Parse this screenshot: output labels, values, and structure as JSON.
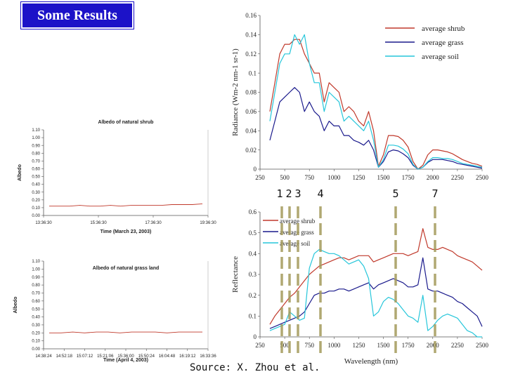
{
  "slide": {
    "title": "Some Results",
    "source": "Source: X. Zhou et al.",
    "colors": {
      "title_bg": "#1c12c8",
      "band_marker": "#a39a5a"
    }
  },
  "band_labels": [
    "1",
    "2",
    "3",
    "4",
    "5",
    "7"
  ],
  "chart_data": [
    {
      "type": "line",
      "title": "Albedo of natural shrub",
      "xlabel": "Time (March 23, 2003)",
      "ylabel": "Albedo",
      "x_ticks": [
        "13:36:30",
        "15:36:30",
        "17:36:30",
        "19:36:30"
      ],
      "y_ticks": [
        "0.00",
        "0.10",
        "0.20",
        "0.30",
        "0.40",
        "0.50",
        "0.60",
        "0.70",
        "0.80",
        "0.90",
        "1.00",
        "1.10"
      ],
      "ylim": [
        0,
        1.1
      ],
      "series": [
        {
          "color": "#c0392b",
          "values": [
            0.12,
            0.12,
            0.12,
            0.13,
            0.12,
            0.12,
            0.13,
            0.12,
            0.13,
            0.13,
            0.13,
            0.13,
            0.14,
            0.14,
            0.14,
            0.15
          ]
        }
      ]
    },
    {
      "type": "line",
      "title": "Albedo of natural grass land",
      "xlabel": "Time (April 4, 2003)",
      "ylabel": "Albedo",
      "x_ticks": [
        "14:38:24",
        "14:52:18",
        "15:07:12",
        "15:21:06",
        "15:36:00",
        "15:50:24",
        "16:04:48",
        "16:19:12",
        "16:33:36"
      ],
      "y_ticks": [
        "0.00",
        "0.10",
        "0.20",
        "0.30",
        "0.40",
        "0.50",
        "0.60",
        "0.70",
        "0.80",
        "0.90",
        "1.00",
        "1.10"
      ],
      "ylim": [
        0,
        1.1
      ],
      "series": [
        {
          "color": "#c0392b",
          "values": [
            0.2,
            0.2,
            0.21,
            0.2,
            0.21,
            0.21,
            0.2,
            0.21,
            0.21,
            0.21,
            0.2,
            0.21,
            0.21,
            0.21
          ]
        }
      ]
    },
    {
      "type": "line",
      "title": "",
      "xlabel": "",
      "ylabel": "Radiance (Wm-2 nm-1 sr-1)",
      "x_ticks": [
        "250",
        "500",
        "750",
        "1000",
        "1250",
        "1500",
        "1750",
        "2000",
        "2250",
        "2500"
      ],
      "y_ticks": [
        "0",
        "0.02",
        "0.04",
        "0.06",
        "0.08",
        "0.1",
        "0.12",
        "0.14",
        "0.16"
      ],
      "xlim": [
        250,
        2500
      ],
      "ylim": [
        0,
        0.16
      ],
      "legend": "top-right",
      "x": [
        350,
        400,
        450,
        500,
        550,
        600,
        650,
        700,
        750,
        800,
        850,
        900,
        950,
        1000,
        1050,
        1100,
        1150,
        1200,
        1250,
        1300,
        1350,
        1400,
        1450,
        1500,
        1550,
        1600,
        1650,
        1700,
        1750,
        1800,
        1850,
        1900,
        1950,
        2000,
        2050,
        2100,
        2150,
        2200,
        2250,
        2300,
        2350,
        2400,
        2450,
        2500
      ],
      "series": [
        {
          "name": "average shrub",
          "color": "#c0392b",
          "values": [
            0.06,
            0.09,
            0.12,
            0.13,
            0.13,
            0.135,
            0.135,
            0.12,
            0.11,
            0.1,
            0.1,
            0.07,
            0.09,
            0.085,
            0.08,
            0.06,
            0.065,
            0.06,
            0.05,
            0.045,
            0.06,
            0.04,
            0.003,
            0.015,
            0.035,
            0.035,
            0.034,
            0.03,
            0.023,
            0.008,
            0.0,
            0.004,
            0.015,
            0.02,
            0.02,
            0.019,
            0.018,
            0.016,
            0.013,
            0.01,
            0.008,
            0.006,
            0.005,
            0.003
          ]
        },
        {
          "name": "average grass",
          "color": "#1a1a8c",
          "values": [
            0.03,
            0.05,
            0.07,
            0.075,
            0.08,
            0.085,
            0.08,
            0.06,
            0.07,
            0.06,
            0.055,
            0.04,
            0.05,
            0.045,
            0.045,
            0.035,
            0.035,
            0.03,
            0.028,
            0.025,
            0.03,
            0.02,
            0.002,
            0.008,
            0.018,
            0.02,
            0.019,
            0.016,
            0.012,
            0.004,
            0.0,
            0.002,
            0.007,
            0.01,
            0.01,
            0.01,
            0.009,
            0.008,
            0.006,
            0.005,
            0.004,
            0.003,
            0.002,
            0.001
          ]
        },
        {
          "name": "average soil",
          "color": "#26c6da",
          "values": [
            0.05,
            0.08,
            0.11,
            0.12,
            0.12,
            0.14,
            0.13,
            0.14,
            0.11,
            0.09,
            0.09,
            0.06,
            0.08,
            0.075,
            0.07,
            0.05,
            0.055,
            0.05,
            0.045,
            0.04,
            0.05,
            0.03,
            0.002,
            0.01,
            0.025,
            0.025,
            0.024,
            0.021,
            0.016,
            0.005,
            0.0,
            0.002,
            0.008,
            0.012,
            0.012,
            0.011,
            0.011,
            0.01,
            0.008,
            0.006,
            0.005,
            0.004,
            0.003,
            0.002
          ]
        }
      ]
    },
    {
      "type": "line",
      "title": "",
      "xlabel": "Wavelength (nm)",
      "ylabel": "Reflectance",
      "x_ticks": [
        "250",
        "500",
        "750",
        "1000",
        "1250",
        "1500",
        "1750",
        "2000",
        "2250",
        "2500"
      ],
      "y_ticks": [
        "0",
        "0.1",
        "0.2",
        "0.3",
        "0.4",
        "0.5",
        "0.6"
      ],
      "xlim": [
        250,
        2500
      ],
      "ylim": [
        0,
        0.6
      ],
      "legend": "top-left",
      "x": [
        350,
        400,
        450,
        500,
        550,
        600,
        650,
        700,
        750,
        800,
        850,
        900,
        950,
        1000,
        1050,
        1100,
        1150,
        1200,
        1250,
        1300,
        1350,
        1400,
        1450,
        1500,
        1550,
        1600,
        1650,
        1700,
        1750,
        1800,
        1850,
        1900,
        1950,
        2000,
        2050,
        2100,
        2150,
        2200,
        2250,
        2300,
        2350,
        2400,
        2450,
        2500
      ],
      "series": [
        {
          "name": "average shrub",
          "color": "#c0392b",
          "values": [
            0.06,
            0.1,
            0.13,
            0.16,
            0.19,
            0.21,
            0.24,
            0.27,
            0.3,
            0.32,
            0.34,
            0.35,
            0.36,
            0.37,
            0.38,
            0.38,
            0.37,
            0.38,
            0.39,
            0.39,
            0.39,
            0.36,
            0.37,
            0.38,
            0.39,
            0.4,
            0.4,
            0.4,
            0.39,
            0.4,
            0.41,
            0.52,
            0.43,
            0.42,
            0.42,
            0.43,
            0.42,
            0.41,
            0.39,
            0.38,
            0.37,
            0.36,
            0.34,
            0.32
          ]
        },
        {
          "name": "average grass",
          "color": "#1a1a8c",
          "values": [
            0.04,
            0.05,
            0.06,
            0.07,
            0.08,
            0.09,
            0.1,
            0.12,
            0.16,
            0.2,
            0.21,
            0.21,
            0.22,
            0.22,
            0.23,
            0.23,
            0.22,
            0.23,
            0.24,
            0.25,
            0.26,
            0.23,
            0.25,
            0.26,
            0.27,
            0.28,
            0.27,
            0.26,
            0.24,
            0.24,
            0.25,
            0.38,
            0.23,
            0.22,
            0.22,
            0.21,
            0.2,
            0.19,
            0.17,
            0.16,
            0.14,
            0.12,
            0.1,
            0.05
          ]
        },
        {
          "name": "average soil",
          "color": "#26c6da",
          "values": [
            0.03,
            0.04,
            0.05,
            0.06,
            0.12,
            0.1,
            0.08,
            0.09,
            0.33,
            0.4,
            0.42,
            0.41,
            0.4,
            0.4,
            0.39,
            0.37,
            0.35,
            0.36,
            0.37,
            0.34,
            0.28,
            0.1,
            0.12,
            0.17,
            0.19,
            0.18,
            0.16,
            0.13,
            0.1,
            0.09,
            0.07,
            0.2,
            0.03,
            0.05,
            0.08,
            0.1,
            0.11,
            0.1,
            0.09,
            0.06,
            0.03,
            0.02,
            0.0,
            0.0
          ]
        }
      ]
    }
  ]
}
